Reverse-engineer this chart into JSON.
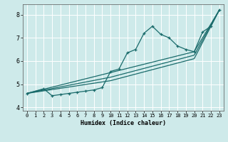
{
  "xlabel": "Humidex (Indice chaleur)",
  "xlim": [
    -0.5,
    23.5
  ],
  "ylim": [
    3.85,
    8.45
  ],
  "yticks": [
    4,
    5,
    6,
    7,
    8
  ],
  "xticks": [
    0,
    1,
    2,
    3,
    4,
    5,
    6,
    7,
    8,
    9,
    10,
    11,
    12,
    13,
    14,
    15,
    16,
    17,
    18,
    19,
    20,
    21,
    22,
    23
  ],
  "bg_color": "#ceeaea",
  "grid_color": "#ffffff",
  "line_color": "#1a6b6b",
  "line1_x": [
    0,
    2,
    3,
    4,
    5,
    6,
    7,
    8,
    9,
    10,
    11,
    12,
    13,
    14,
    15,
    16,
    17,
    18,
    19,
    20,
    21,
    22,
    23
  ],
  "line1_y": [
    4.6,
    4.8,
    4.5,
    4.55,
    4.6,
    4.65,
    4.7,
    4.75,
    4.85,
    5.55,
    5.65,
    6.35,
    6.5,
    7.2,
    7.5,
    7.15,
    7.0,
    6.65,
    6.5,
    6.4,
    7.25,
    7.5,
    8.2
  ],
  "line2_x": [
    0,
    10,
    20,
    23
  ],
  "line2_y": [
    4.6,
    5.5,
    6.4,
    8.2
  ],
  "line3_x": [
    0,
    10,
    20,
    23
  ],
  "line3_y": [
    4.6,
    5.3,
    6.25,
    8.2
  ],
  "line4_x": [
    0,
    10,
    20,
    23
  ],
  "line4_y": [
    4.6,
    5.15,
    6.1,
    8.2
  ]
}
